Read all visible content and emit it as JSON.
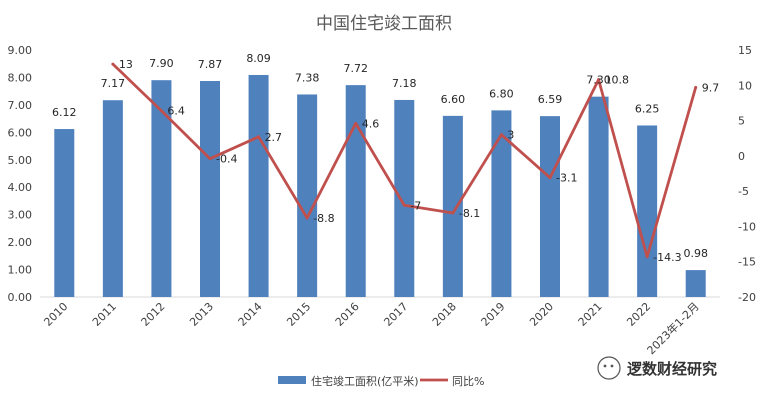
{
  "chart_data": {
    "type": "bar+line",
    "title": "中国住宅竣工面积",
    "categories": [
      "2010",
      "2011",
      "2012",
      "2013",
      "2014",
      "2015",
      "2016",
      "2017",
      "2018",
      "2019",
      "2020",
      "2021",
      "2022",
      "2023年1-2月"
    ],
    "series": [
      {
        "name": "住宅竣工面积(亿平米)",
        "type": "bar",
        "axis": "left",
        "color": "#4F81BD",
        "values": [
          6.12,
          7.17,
          7.9,
          7.87,
          8.09,
          7.38,
          7.72,
          7.18,
          6.6,
          6.8,
          6.59,
          7.3,
          6.25,
          0.98
        ],
        "labels": [
          "6.12",
          "7.17",
          "7.90",
          "7.87",
          "8.09",
          "7.38",
          "7.72",
          "7.18",
          "6.60",
          "6.80",
          "6.59",
          "7.30",
          "6.25",
          "0.98"
        ]
      },
      {
        "name": "同比%",
        "type": "line",
        "axis": "right",
        "color": "#C0504D",
        "values": [
          null,
          13,
          6.4,
          -0.4,
          2.7,
          -8.8,
          4.6,
          -7,
          -8.1,
          3,
          -3.1,
          10.8,
          -14.3,
          9.7
        ],
        "labels": [
          "",
          "13",
          "6.4",
          "-0.4",
          "2.7",
          "-8.8",
          "4.6",
          "-7",
          "-8.1",
          "3",
          "-3.1",
          "10.8",
          "-14.3",
          "9.7"
        ]
      }
    ],
    "y_left": {
      "min": 0,
      "max": 9,
      "ticks": [
        "0.00",
        "1.00",
        "2.00",
        "3.00",
        "4.00",
        "5.00",
        "6.00",
        "7.00",
        "8.00",
        "9.00"
      ]
    },
    "y_right": {
      "min": -20,
      "max": 15,
      "ticks": [
        "-20",
        "-15",
        "-10",
        "-5",
        "0",
        "5",
        "10",
        "15"
      ]
    },
    "grid": false,
    "legend_position": "bottom"
  },
  "watermark": "逻数财经研究"
}
